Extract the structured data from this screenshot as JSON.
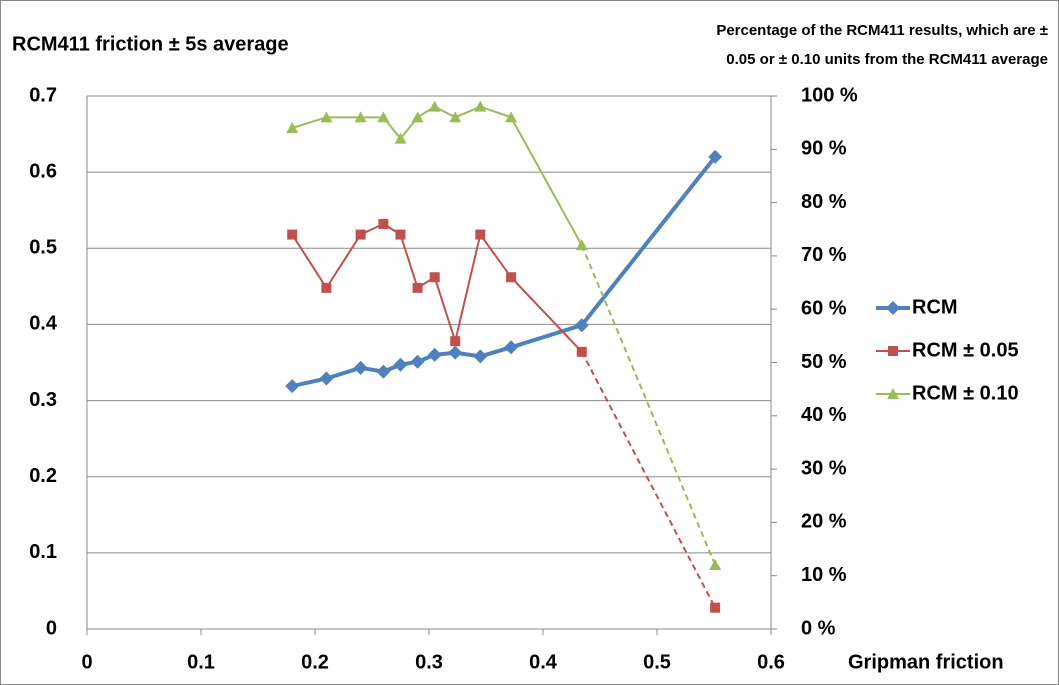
{
  "chart_data": {
    "type": "line",
    "title": "RCM411 friction ± 5s average",
    "y2_label": [
      "Percentage of the RCM411 results, which are ±",
      "0.05 or ± 0.10 units from the RCM411 average"
    ],
    "x_label": "Gripman friction",
    "x": [
      0.18,
      0.21,
      0.24,
      0.26,
      0.275,
      0.29,
      0.305,
      0.323,
      0.345,
      0.372,
      0.434,
      0.551
    ],
    "xlim": [
      0,
      0.6
    ],
    "xticks": [
      0,
      0.1,
      0.2,
      0.3,
      0.4,
      0.5,
      0.6
    ],
    "ylim": [
      0,
      0.7
    ],
    "yticks": [
      0,
      0.1,
      0.2,
      0.3,
      0.4,
      0.5,
      0.6,
      0.7
    ],
    "y2lim": [
      0,
      100
    ],
    "y2ticks": [
      {
        "value": 0,
        "label": "0 %"
      },
      {
        "value": 10,
        "label": "10 %"
      },
      {
        "value": 20,
        "label": "20 %"
      },
      {
        "value": 30,
        "label": "30 %"
      },
      {
        "value": 40,
        "label": "40 %"
      },
      {
        "value": 50,
        "label": "50 %"
      },
      {
        "value": 60,
        "label": "60 %"
      },
      {
        "value": 70,
        "label": "70 %"
      },
      {
        "value": 80,
        "label": "80 %"
      },
      {
        "value": 90,
        "label": "90 %"
      },
      {
        "value": 100,
        "label": "100 %"
      }
    ],
    "grid": true,
    "legend": "right",
    "series": [
      {
        "name": "RCM",
        "color": "#4f81bd",
        "marker": "diamond",
        "values": [
          0.319,
          0.329,
          0.343,
          0.338,
          0.347,
          0.351,
          0.36,
          0.363,
          0.358,
          0.37,
          0.399,
          0.62
        ]
      },
      {
        "name": "RCM ± 0.05",
        "color": "#c0504d",
        "marker": "square",
        "axis": "y2",
        "last_segment_dashed": true,
        "values": [
          74,
          64,
          74,
          76,
          74,
          64,
          66,
          54,
          74,
          66,
          52,
          4
        ]
      },
      {
        "name": "RCM ± 0.10",
        "color": "#9bbb59",
        "marker": "triangle",
        "axis": "y2",
        "last_segment_dashed": true,
        "values": [
          94,
          96,
          96,
          96,
          92,
          96,
          98,
          96,
          98,
          96,
          72,
          12
        ]
      }
    ]
  }
}
